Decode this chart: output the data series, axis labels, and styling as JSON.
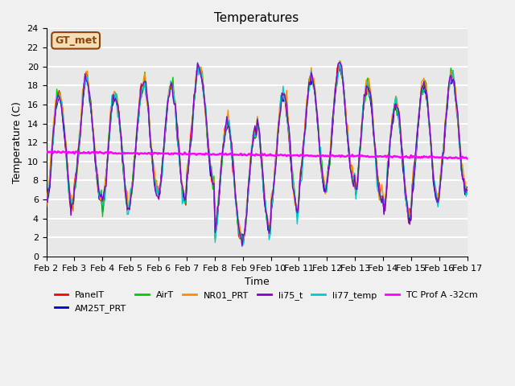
{
  "title": "Temperatures",
  "xlabel": "Time",
  "ylabel": "Temperature (C)",
  "ylim": [
    0,
    24
  ],
  "yticks": [
    0,
    2,
    4,
    6,
    8,
    10,
    12,
    14,
    16,
    18,
    20,
    22,
    24
  ],
  "xtick_labels": [
    "Feb 2",
    "Feb 3",
    "Feb 4",
    "Feb 5",
    "Feb 6",
    "Feb 7",
    "Feb 8",
    "Feb 9",
    "Feb 10",
    "Feb 11",
    "Feb 12",
    "Feb 13",
    "Feb 14",
    "Feb 15",
    "Feb 16",
    "Feb 17"
  ],
  "annotation_text": "GT_met",
  "annotation_color": "#8B4513",
  "annotation_bg": "#F5DEB3",
  "series_colors": {
    "PanelT": "#FF0000",
    "AM25T_PRT": "#0000CC",
    "AirT": "#00CC00",
    "NR01_PRT": "#FF8C00",
    "li75_t": "#8800CC",
    "li77_temp": "#00CCCC",
    "TC Prof A -32cm": "#FF00FF"
  },
  "background_color": "#E8E8E8",
  "grid_color": "#FFFFFF",
  "figsize": [
    6.4,
    4.8
  ],
  "dpi": 100
}
